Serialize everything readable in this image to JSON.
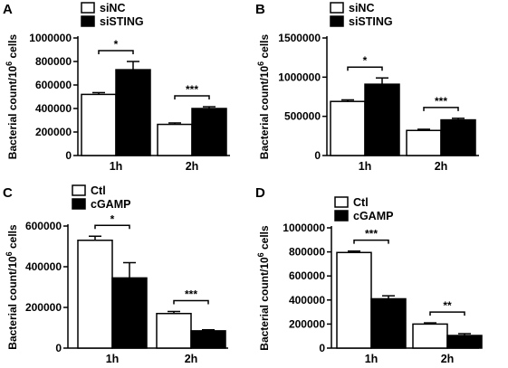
{
  "chart_data": [
    {
      "panel": "A",
      "type": "bar",
      "ylabel": "Bacterial count/10",
      "ylabel_sup": "6",
      "ylabel_tail": " cells",
      "ylim": [
        0,
        1000000
      ],
      "yticks": [
        0,
        200000,
        400000,
        600000,
        800000,
        1000000
      ],
      "ytick_labels": [
        "0",
        "200000",
        "400000",
        "600000",
        "800000",
        "1000000"
      ],
      "categories": [
        "1h",
        "2h"
      ],
      "series": [
        {
          "name": "siNC",
          "fill": "#ffffff",
          "values": [
            520000,
            265000
          ],
          "errors": [
            15000,
            12000
          ]
        },
        {
          "name": "siSTING",
          "fill": "#000000",
          "values": [
            730000,
            400000
          ],
          "errors": [
            70000,
            15000
          ]
        }
      ],
      "significance": [
        "*",
        "***"
      ]
    },
    {
      "panel": "B",
      "type": "bar",
      "ylabel": "Bacterial count/10",
      "ylabel_sup": "6",
      "ylabel_tail": " cells",
      "ylim": [
        0,
        1500000
      ],
      "yticks": [
        0,
        500000,
        1000000,
        1500000
      ],
      "ytick_labels": [
        "0",
        "500000",
        "1000000",
        "1500000"
      ],
      "categories": [
        "1h",
        "2h"
      ],
      "series": [
        {
          "name": "siNC",
          "fill": "#ffffff",
          "values": [
            690000,
            320000
          ],
          "errors": [
            20000,
            15000
          ]
        },
        {
          "name": "siSTING",
          "fill": "#000000",
          "values": [
            910000,
            455000
          ],
          "errors": [
            80000,
            20000
          ]
        }
      ],
      "significance": [
        "*",
        "***"
      ]
    },
    {
      "panel": "C",
      "type": "bar",
      "ylabel": "Bacterial count/10",
      "ylabel_sup": "6",
      "ylabel_tail": " cells",
      "ylim": [
        0,
        600000
      ],
      "yticks": [
        0,
        200000,
        400000,
        600000
      ],
      "ytick_labels": [
        "0",
        "200000",
        "400000",
        "600000"
      ],
      "categories": [
        "1h",
        "2h"
      ],
      "series": [
        {
          "name": "Ctl",
          "fill": "#ffffff",
          "values": [
            530000,
            170000
          ],
          "errors": [
            20000,
            10000
          ]
        },
        {
          "name": "cGAMP",
          "fill": "#000000",
          "values": [
            345000,
            85000
          ],
          "errors": [
            75000,
            5000
          ]
        }
      ],
      "significance": [
        "*",
        "***"
      ]
    },
    {
      "panel": "D",
      "type": "bar",
      "ylabel": "Bacterial count/10",
      "ylabel_sup": "6",
      "ylabel_tail": " cells",
      "ylim": [
        0,
        1000000
      ],
      "yticks": [
        0,
        200000,
        400000,
        600000,
        800000,
        1000000
      ],
      "ytick_labels": [
        "0",
        "200000",
        "400000",
        "600000",
        "800000",
        "1000000"
      ],
      "categories": [
        "1h",
        "2h"
      ],
      "series": [
        {
          "name": "Ctl",
          "fill": "#ffffff",
          "values": [
            795000,
            200000
          ],
          "errors": [
            12000,
            10000
          ]
        },
        {
          "name": "cGAMP",
          "fill": "#000000",
          "values": [
            410000,
            105000
          ],
          "errors": [
            25000,
            15000
          ]
        }
      ],
      "significance": [
        "***",
        "**"
      ]
    }
  ]
}
